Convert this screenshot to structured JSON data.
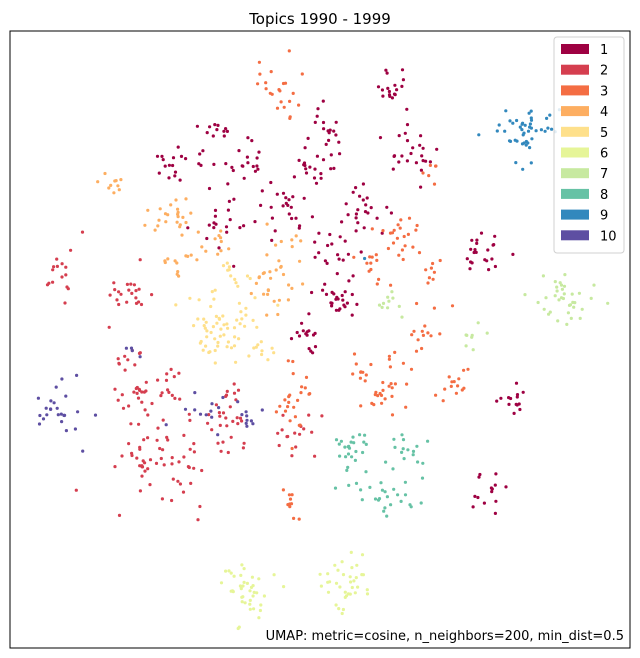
{
  "chart_data": {
    "type": "scatter",
    "title": "Topics 1990 - 1999",
    "xlabel": "",
    "ylabel": "",
    "xlim": [
      0,
      100
    ],
    "ylim": [
      0,
      100
    ],
    "grid": false,
    "axis_ticks": false,
    "legend": {
      "placement": "top-right"
    },
    "annotation": "UMAP: metric=cosine, n_neighbors=200, min_dist=0.5",
    "point_size_note": "small dots",
    "series": [
      {
        "name": "1",
        "color": "#9e0142",
        "clusters": [
          {
            "cx": 61.7,
            "cy": 90.9,
            "sx": 2.0,
            "sy": 2.0,
            "n": 18
          },
          {
            "cx": 33.3,
            "cy": 84.8,
            "sx": 1.6,
            "sy": 1.2,
            "n": 10
          },
          {
            "cx": 51.6,
            "cy": 83.7,
            "sx": 1.6,
            "sy": 2.0,
            "n": 16
          },
          {
            "cx": 64.4,
            "cy": 80.3,
            "sx": 2.3,
            "sy": 2.5,
            "n": 24
          },
          {
            "cx": 27.5,
            "cy": 77.7,
            "sx": 2.2,
            "sy": 1.8,
            "n": 18
          },
          {
            "cx": 38.6,
            "cy": 78.4,
            "sx": 2.5,
            "sy": 2.2,
            "n": 22
          },
          {
            "cx": 48.7,
            "cy": 77.7,
            "sx": 2.2,
            "sy": 2.2,
            "n": 20
          },
          {
            "cx": 44.0,
            "cy": 71.2,
            "sx": 2.2,
            "sy": 2.2,
            "n": 22
          },
          {
            "cx": 34.8,
            "cy": 69.0,
            "sx": 2.3,
            "sy": 2.2,
            "n": 20
          },
          {
            "cx": 56.9,
            "cy": 71.2,
            "sx": 2.5,
            "sy": 2.2,
            "n": 22
          },
          {
            "cx": 52.0,
            "cy": 64.5,
            "sx": 2.2,
            "sy": 1.8,
            "n": 18
          },
          {
            "cx": 76.2,
            "cy": 63.4,
            "sx": 2.5,
            "sy": 2.0,
            "n": 22
          },
          {
            "cx": 53.6,
            "cy": 56.6,
            "sx": 2.2,
            "sy": 2.5,
            "n": 26
          },
          {
            "cx": 48.5,
            "cy": 50.5,
            "sx": 1.8,
            "sy": 1.5,
            "n": 16
          },
          {
            "cx": 81.0,
            "cy": 40.7,
            "sx": 1.9,
            "sy": 1.8,
            "n": 14
          },
          {
            "cx": 78.5,
            "cy": 25.0,
            "sx": 1.7,
            "sy": 2.0,
            "n": 14
          }
        ]
      },
      {
        "name": "2",
        "color": "#d53e4f",
        "clusters": [
          {
            "cx": 8.3,
            "cy": 60.4,
            "sx": 1.6,
            "sy": 2.3,
            "n": 16
          },
          {
            "cx": 18.7,
            "cy": 57.5,
            "sx": 2.2,
            "sy": 2.5,
            "n": 22
          },
          {
            "cx": 19.8,
            "cy": 46.3,
            "sx": 1.8,
            "sy": 1.2,
            "n": 10
          },
          {
            "cx": 20.2,
            "cy": 41.0,
            "sx": 2.0,
            "sy": 2.2,
            "n": 18
          },
          {
            "cx": 25.4,
            "cy": 42.0,
            "sx": 2.0,
            "sy": 2.0,
            "n": 16
          },
          {
            "cx": 35.7,
            "cy": 37.3,
            "sx": 2.5,
            "sy": 3.5,
            "n": 28
          },
          {
            "cx": 24.3,
            "cy": 30.1,
            "sx": 4.5,
            "sy": 4.0,
            "n": 60
          },
          {
            "cx": 46.3,
            "cy": 35.3,
            "sx": 2.0,
            "sy": 2.0,
            "n": 16
          }
        ]
      },
      {
        "name": "3",
        "color": "#f46d43",
        "clusters": [
          {
            "cx": 43.3,
            "cy": 90.3,
            "sx": 2.0,
            "sy": 2.5,
            "n": 22
          },
          {
            "cx": 67.7,
            "cy": 76.7,
            "sx": 1.0,
            "sy": 1.5,
            "n": 6
          },
          {
            "cx": 62.7,
            "cy": 66.6,
            "sx": 2.2,
            "sy": 2.5,
            "n": 22
          },
          {
            "cx": 58.1,
            "cy": 61.7,
            "sx": 1.8,
            "sy": 1.8,
            "n": 12
          },
          {
            "cx": 68.4,
            "cy": 61.7,
            "sx": 1.2,
            "sy": 1.5,
            "n": 8
          },
          {
            "cx": 66.3,
            "cy": 51.7,
            "sx": 1.8,
            "sy": 2.2,
            "n": 14
          },
          {
            "cx": 59.9,
            "cy": 42.1,
            "sx": 3.0,
            "sy": 3.5,
            "n": 36
          },
          {
            "cx": 71.1,
            "cy": 42.1,
            "sx": 1.8,
            "sy": 1.8,
            "n": 14
          },
          {
            "cx": 46.2,
            "cy": 39.5,
            "sx": 2.4,
            "sy": 3.0,
            "n": 24
          },
          {
            "cx": 45.2,
            "cy": 23.7,
            "sx": 0.8,
            "sy": 2.2,
            "n": 10
          }
        ]
      },
      {
        "name": "4",
        "color": "#fdae61",
        "clusters": [
          {
            "cx": 15.6,
            "cy": 75.3,
            "sx": 1.6,
            "sy": 1.4,
            "n": 10
          },
          {
            "cx": 25.4,
            "cy": 69.3,
            "sx": 2.5,
            "sy": 2.0,
            "n": 24
          },
          {
            "cx": 27.1,
            "cy": 62.4,
            "sx": 1.8,
            "sy": 1.5,
            "n": 12
          },
          {
            "cx": 33.6,
            "cy": 65.6,
            "sx": 1.8,
            "sy": 1.2,
            "n": 10
          },
          {
            "cx": 42.4,
            "cy": 59.3,
            "sx": 2.5,
            "sy": 2.5,
            "n": 26
          },
          {
            "cx": 44.3,
            "cy": 65.8,
            "sx": 1.6,
            "sy": 1.2,
            "n": 8
          }
        ]
      },
      {
        "name": "5",
        "color": "#fee08b",
        "clusters": [
          {
            "cx": 33.6,
            "cy": 52.9,
            "sx": 3.6,
            "sy": 3.6,
            "n": 60
          },
          {
            "cx": 36.4,
            "cy": 60.9,
            "sx": 1.6,
            "sy": 1.5,
            "n": 10
          },
          {
            "cx": 41.1,
            "cy": 48.1,
            "sx": 1.6,
            "sy": 1.5,
            "n": 10
          }
        ]
      },
      {
        "name": "6",
        "color": "#e6f598",
        "clusters": [
          {
            "cx": 38.4,
            "cy": 9.3,
            "sx": 2.3,
            "sy": 2.5,
            "n": 40
          },
          {
            "cx": 54.5,
            "cy": 10.5,
            "sx": 2.3,
            "sy": 2.5,
            "n": 36
          }
        ]
      },
      {
        "name": "7",
        "color": "#c7e9a0",
        "clusters": [
          {
            "cx": 89.8,
            "cy": 56.6,
            "sx": 2.5,
            "sy": 2.2,
            "n": 36
          },
          {
            "cx": 74.7,
            "cy": 50.7,
            "sx": 1.2,
            "sy": 1.2,
            "n": 8
          },
          {
            "cx": 61.7,
            "cy": 55.4,
            "sx": 1.6,
            "sy": 1.2,
            "n": 10
          }
        ]
      },
      {
        "name": "8",
        "color": "#66c2a5",
        "clusters": [
          {
            "cx": 55.0,
            "cy": 30.5,
            "sx": 2.5,
            "sy": 2.3,
            "n": 30
          },
          {
            "cx": 61.2,
            "cy": 24.0,
            "sx": 2.3,
            "sy": 1.8,
            "n": 18
          },
          {
            "cx": 64.6,
            "cy": 31.2,
            "sx": 2.2,
            "sy": 2.0,
            "n": 18
          }
        ]
      },
      {
        "name": "9",
        "color": "#3288bd",
        "clusters": [
          {
            "cx": 83.0,
            "cy": 84.1,
            "sx": 3.0,
            "sy": 2.5,
            "n": 46
          },
          {
            "cx": 56.9,
            "cy": 63.1,
            "sx": 0.4,
            "sy": 0.4,
            "n": 1
          }
        ]
      },
      {
        "name": "10",
        "color": "#5e4fa2",
        "clusters": [
          {
            "cx": 8.1,
            "cy": 38.6,
            "sx": 2.2,
            "sy": 2.3,
            "n": 26
          },
          {
            "cx": 19.4,
            "cy": 48.5,
            "sx": 0.8,
            "sy": 0.8,
            "n": 4
          },
          {
            "cx": 31.6,
            "cy": 38.7,
            "sx": 3.0,
            "sy": 2.3,
            "n": 14
          },
          {
            "cx": 38.6,
            "cy": 38.0,
            "sx": 1.5,
            "sy": 1.2,
            "n": 8
          }
        ]
      }
    ]
  }
}
